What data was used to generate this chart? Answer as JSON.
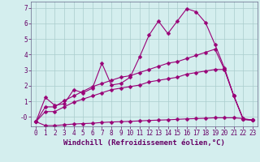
{
  "title": "",
  "xlabel": "Windchill (Refroidissement éolien,°C)",
  "ylabel": "",
  "bg_color": "#d4eeee",
  "line_color": "#990077",
  "grid_color": "#aacccc",
  "xlim": [
    -0.5,
    23.5
  ],
  "ylim": [
    -0.6,
    7.4
  ],
  "xticks": [
    0,
    1,
    2,
    3,
    4,
    5,
    6,
    7,
    8,
    9,
    10,
    11,
    12,
    13,
    14,
    15,
    16,
    17,
    18,
    19,
    20,
    21,
    22,
    23
  ],
  "ytick_vals": [
    0,
    1,
    2,
    3,
    4,
    5,
    6,
    7
  ],
  "ytick_labels": [
    "-0",
    "1",
    "2",
    "3",
    "4",
    "5",
    "6",
    "7"
  ],
  "line1_x": [
    0,
    1,
    2,
    3,
    4,
    5,
    6,
    7,
    8,
    9,
    10,
    11,
    12,
    13,
    14,
    15,
    16,
    17,
    18,
    19,
    20,
    21,
    22,
    23
  ],
  "line1_y": [
    -0.3,
    1.25,
    0.75,
    0.85,
    1.75,
    1.55,
    1.85,
    3.45,
    2.05,
    2.15,
    2.55,
    3.85,
    5.25,
    6.15,
    5.35,
    6.15,
    6.95,
    6.75,
    6.05,
    4.65,
    3.15,
    1.35,
    -0.15,
    -0.2
  ],
  "line2_x": [
    0,
    1,
    2,
    3,
    4,
    5,
    6,
    7,
    8,
    9,
    10,
    11,
    12,
    13,
    14,
    15,
    16,
    17,
    18,
    19,
    20,
    21,
    22,
    23
  ],
  "line2_y": [
    -0.3,
    0.65,
    0.65,
    1.05,
    1.35,
    1.65,
    1.95,
    2.15,
    2.35,
    2.55,
    2.65,
    2.85,
    3.05,
    3.25,
    3.45,
    3.55,
    3.75,
    3.95,
    4.15,
    4.35,
    3.05,
    1.35,
    -0.15,
    -0.2
  ],
  "line3_x": [
    0,
    1,
    2,
    3,
    4,
    5,
    6,
    7,
    8,
    9,
    10,
    11,
    12,
    13,
    14,
    15,
    16,
    17,
    18,
    19,
    20,
    21,
    22,
    23
  ],
  "line3_y": [
    -0.3,
    0.35,
    0.35,
    0.65,
    0.95,
    1.15,
    1.35,
    1.55,
    1.75,
    1.85,
    1.95,
    2.05,
    2.25,
    2.35,
    2.45,
    2.55,
    2.75,
    2.85,
    2.95,
    3.05,
    3.05,
    1.35,
    -0.15,
    -0.2
  ],
  "line4_x": [
    0,
    1,
    2,
    3,
    4,
    5,
    6,
    7,
    8,
    9,
    10,
    11,
    12,
    13,
    14,
    15,
    16,
    17,
    18,
    19,
    20,
    21,
    22,
    23
  ],
  "line4_y": [
    -0.3,
    -0.55,
    -0.55,
    -0.5,
    -0.45,
    -0.42,
    -0.4,
    -0.35,
    -0.32,
    -0.3,
    -0.28,
    -0.25,
    -0.22,
    -0.2,
    -0.18,
    -0.15,
    -0.12,
    -0.1,
    -0.08,
    -0.05,
    -0.05,
    -0.05,
    -0.1,
    -0.2
  ],
  "marker": "D",
  "markersize": 2.5,
  "linewidth": 0.8,
  "xlabel_fontsize": 6.5,
  "tick_fontsize": 5.5
}
